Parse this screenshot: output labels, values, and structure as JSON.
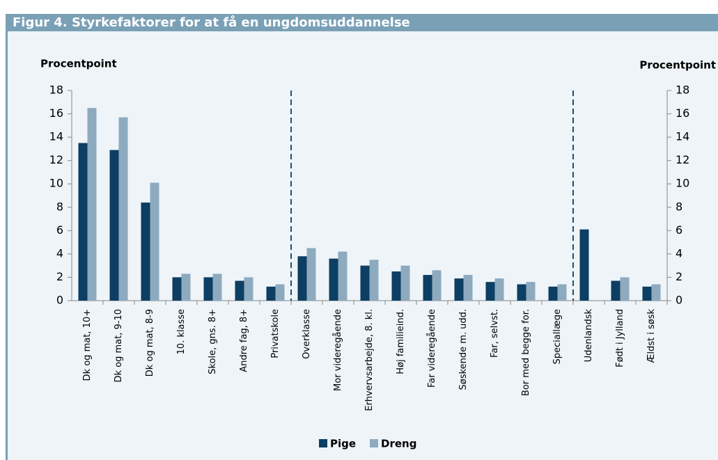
{
  "chart_data": {
    "type": "bar",
    "title": "Figur 4. Styrkefaktorer for at få en ungdomsuddannelse",
    "y_label": "Procentpoint",
    "y2_label": "Procentpoint",
    "categories": [
      "Dk og mat, 10+",
      "Dk og mat, 9-10",
      "Dk og mat, 8-9",
      "10. klasse",
      "Skole, gns. 8+",
      "Andre fag, 8+",
      "Privatskole",
      "Overklasse",
      "Mor videregående",
      "Erhvervsarbejde, 8. kl.",
      "Høj familieind.",
      "Far videregående",
      "Søskende m. udd.",
      "Far, selvst.",
      "Bor med begge for.",
      "Speciallæge",
      "Udenlandsk",
      "Født i Jylland",
      "Ældst i søsk"
    ],
    "series": [
      {
        "name": "Pige",
        "color": "#0d3e63",
        "values": [
          13.5,
          12.9,
          8.4,
          2.0,
          2.0,
          1.7,
          1.2,
          3.8,
          3.6,
          3.0,
          2.5,
          2.2,
          1.9,
          1.6,
          1.4,
          1.2,
          6.1,
          1.7,
          1.2
        ]
      },
      {
        "name": "Dreng",
        "color": "#8eaabf",
        "values": [
          16.5,
          15.7,
          10.1,
          2.3,
          2.3,
          2.0,
          1.4,
          4.5,
          4.2,
          3.5,
          3.0,
          2.6,
          2.2,
          1.9,
          1.6,
          1.4,
          null,
          2.0,
          1.4
        ]
      }
    ],
    "ylim": [
      0,
      18
    ],
    "yticks": [
      0,
      2,
      4,
      6,
      8,
      10,
      12,
      14,
      16,
      18
    ],
    "y2lim": [
      0,
      18
    ],
    "y2ticks": [
      0,
      2,
      4,
      6,
      8,
      10,
      12,
      14,
      16,
      18
    ],
    "grid": false,
    "legend": "bottom"
  }
}
